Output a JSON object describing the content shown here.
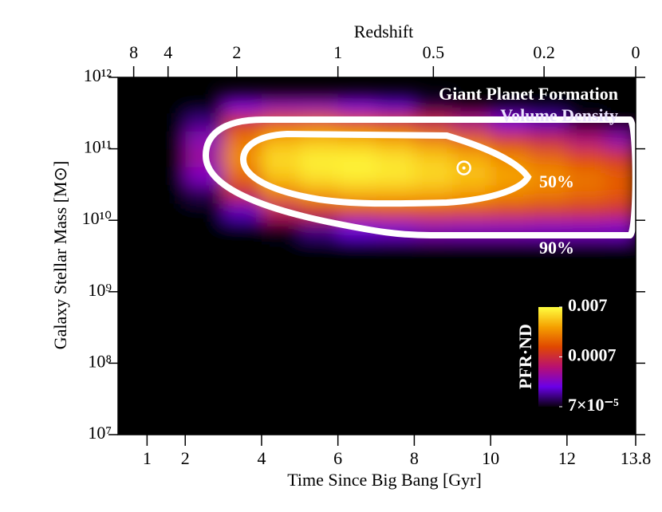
{
  "chart_data": {
    "type": "heatmap",
    "annotations": [
      "Giant Planet Formation",
      "Volume Density"
    ],
    "contour_labels": [
      "50%",
      "90%"
    ],
    "xlabel": "Time Since Big Bang [Gyr]",
    "x2label": "Redshift",
    "ylabel": "Galaxy Stellar Mass [M⊙]",
    "xlim": [
      0.24,
      13.8
    ],
    "xticks": [
      1,
      2,
      4,
      6,
      8,
      10,
      12,
      13.8
    ],
    "x2ticks": [
      {
        "value": 0.65,
        "label": "8"
      },
      {
        "value": 1.55,
        "label": "4"
      },
      {
        "value": 3.35,
        "label": "2"
      },
      {
        "value": 6.0,
        "label": "1"
      },
      {
        "value": 8.5,
        "label": "0.5"
      },
      {
        "value": 11.4,
        "label": "0.2"
      },
      {
        "value": 13.8,
        "label": "0"
      }
    ],
    "ylim": [
      10000000.0,
      1000000000000.0
    ],
    "yscale": "log",
    "yticks": [
      {
        "value": 10000000.0,
        "label": "10⁷"
      },
      {
        "value": 100000000.0,
        "label": "10⁸"
      },
      {
        "value": 1000000000.0,
        "label": "10⁹"
      },
      {
        "value": 10000000000.0,
        "label": "10¹⁰"
      },
      {
        "value": 100000000000.0,
        "label": "10¹¹"
      },
      {
        "value": 1000000000000.0,
        "label": "10¹²"
      }
    ],
    "x_edges": [
      1,
      2,
      3,
      4,
      5,
      6,
      7,
      8,
      9,
      10,
      11,
      12,
      13,
      13.8
    ],
    "y_edges": [
      1780000000.0,
      3160000000.0,
      5620000000.0,
      10000000000.0,
      17800000000.0,
      31600000000.0,
      56200000000.0,
      100000000000.0,
      178000000000.0,
      316000000000.0,
      562000000000.0
    ],
    "z": [
      [
        0,
        0,
        0,
        3e-07,
        5.6e-07,
        1e-06,
        1.2e-06,
        1.8e-06,
        2e-06,
        2.3e-06,
        2.5e-06,
        3.2e-06,
        3.6e-06
      ],
      [
        0,
        2e-07,
        1.4e-06,
        6.4e-06,
        1.1e-05,
        1.8e-05,
        2.2e-05,
        2.7e-05,
        2.9e-05,
        3.1e-05,
        3.2e-05,
        3.6e-05,
        3.6e-05
      ],
      [
        0,
        2.6e-06,
        1.8e-05,
        7.4e-05,
        0.00012,
        0.00018,
        0.0002,
        0.00024,
        0.00023,
        0.00023,
        0.00022,
        0.00022,
        0.00021
      ],
      [
        0,
        2.1e-05,
        0.00015,
        0.00049,
        0.00076,
        0.001,
        0.0011,
        0.0011,
        0.00105,
        0.00094,
        0.00085,
        0.00079,
        0.0007
      ],
      [
        0,
        9.1e-05,
        0.00064,
        0.0019,
        0.0027,
        0.0033,
        0.0033,
        0.0031,
        0.0027,
        0.0022,
        0.0019,
        0.0016,
        0.0013
      ],
      [
        4e-06,
        0.00023,
        0.0016,
        0.004,
        0.0054,
        0.006,
        0.0056,
        0.0048,
        0.0039,
        0.0029,
        0.0023,
        0.00175,
        0.00136
      ],
      [
        6.5e-06,
        0.000325,
        0.0023,
        0.0049,
        0.006,
        0.0061,
        0.0053,
        0.0042,
        0.0032,
        0.0022,
        0.0016,
        0.0011,
        0.0008
      ],
      [
        5e-06,
        0.00026,
        0.0018,
        0.0033,
        0.0038,
        0.0035,
        0.0029,
        0.0021,
        0.00145,
        0.0009,
        0.00062,
        0.0004,
        0.00027
      ],
      [
        2e-06,
        0.000115,
        0.00081,
        0.00125,
        0.0014,
        0.0011,
        0.00087,
        0.00057,
        0.00037,
        0.00021,
        0.00014,
        7.9e-05,
        5e-05
      ],
      [
        0,
        2.9e-05,
        0.00021,
        0.00027,
        0.00027,
        0.00021,
        0.00015,
        8.8e-05,
        5.5e-05,
        2.8e-05,
        1.7e-05,
        9e-06,
        5.3e-06
      ]
    ],
    "sun": {
      "x": 9.3,
      "y": 54000000000.0
    },
    "colorbar": {
      "label": "PFR·ND",
      "lim": [
        7e-05,
        0.007
      ],
      "scale": "log",
      "ticks": [
        {
          "value": 7e-05,
          "label": "7×10⁻⁵"
        },
        0.0007,
        0.007
      ],
      "colormap": [
        "#0a0010",
        "#6a00e8",
        "#b81070",
        "#e04800",
        "#f5a000",
        "#ffff40"
      ]
    }
  }
}
